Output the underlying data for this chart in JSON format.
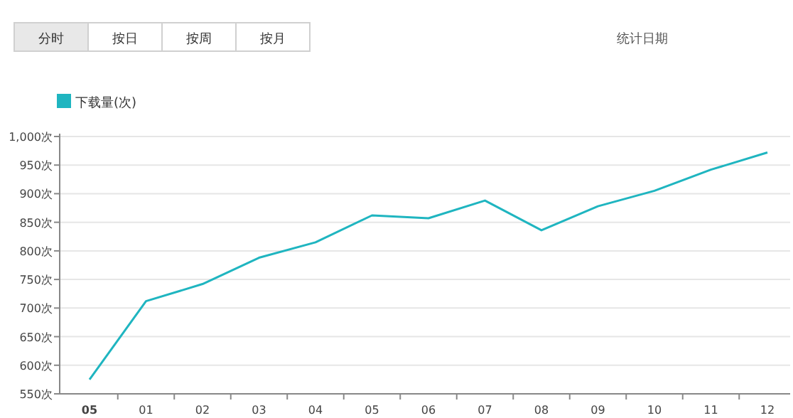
{
  "chart_data": {
    "type": "line",
    "categories": [
      "05",
      "01",
      "02",
      "03",
      "04",
      "05",
      "06",
      "07",
      "08",
      "09",
      "10",
      "11",
      "12"
    ],
    "series": [
      {
        "name": "下载量(次)",
        "color": "#1fb5c0",
        "values": [
          575,
          712,
          742,
          788,
          815,
          862,
          857,
          888,
          836,
          878,
          905,
          942,
          972
        ]
      }
    ],
    "ylim": [
      550,
      1000
    ],
    "yticks": [
      {
        "value": 550,
        "label": "550次"
      },
      {
        "value": 600,
        "label": "600次"
      },
      {
        "value": 650,
        "label": "650次"
      },
      {
        "value": 700,
        "label": "700次"
      },
      {
        "value": 750,
        "label": "750次"
      },
      {
        "value": 800,
        "label": "800次"
      },
      {
        "value": 850,
        "label": "850次"
      },
      {
        "value": 900,
        "label": "900次"
      },
      {
        "value": 950,
        "label": "950次"
      },
      {
        "value": 1000,
        "label": "1,000次"
      }
    ],
    "grid": "y",
    "legend": "top left",
    "marker": "none",
    "line_style": "solid",
    "annotations": [
      "分时",
      "按日",
      "按周",
      "按月",
      "统计日期"
    ]
  }
}
